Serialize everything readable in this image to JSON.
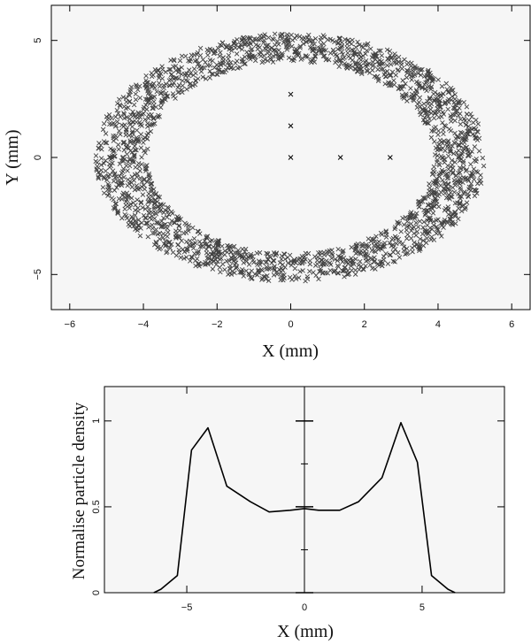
{
  "chart_data": [
    {
      "type": "scatter",
      "title": "",
      "xlabel": "X (mm)",
      "ylabel": "Y (mm)",
      "xlim": [
        -6.5,
        6.5
      ],
      "ylim": [
        -6.5,
        6.5
      ],
      "xticks": [
        -6,
        -4,
        -2,
        0,
        2,
        4,
        6
      ],
      "yticks": [
        -5,
        0,
        5
      ],
      "grid": false,
      "background": "#f6f6f6",
      "marker": "x",
      "distribution": {
        "shape": "elliptical annulus of particles",
        "inner_semi_axis_x": 3.9,
        "inner_semi_axis_y": 4.1,
        "outer_semi_axis_x": 5.3,
        "outer_semi_axis_y": 5.3
      },
      "isolated_points": [
        {
          "x": 0,
          "y": 0
        },
        {
          "x": 0,
          "y": 1.35
        },
        {
          "x": 0,
          "y": 2.7
        },
        {
          "x": 1.35,
          "y": 0
        },
        {
          "x": 2.7,
          "y": 0
        }
      ]
    },
    {
      "type": "line",
      "title": "",
      "xlabel": "X (mm)",
      "ylabel": "Normalise particle density",
      "xlim": [
        -8.5,
        8.5
      ],
      "ylim": [
        0,
        1.2
      ],
      "xticks": [
        -5,
        0,
        5
      ],
      "yticks": [
        0,
        0.5,
        1
      ],
      "grid": false,
      "background": "#f6f6f6",
      "series": [
        {
          "x": [
            -6.4,
            -6.1,
            -5.4,
            -4.8,
            -4.1,
            -3.3,
            -2.3,
            -1.5,
            -0.6,
            0,
            0.6,
            1.5,
            2.3,
            3.3,
            4.1,
            4.8,
            5.4,
            6.1,
            6.4
          ],
          "y": [
            0,
            0.02,
            0.1,
            0.83,
            0.96,
            0.62,
            0.53,
            0.47,
            0.48,
            0.49,
            0.48,
            0.48,
            0.53,
            0.67,
            0.99,
            0.76,
            0.1,
            0.02,
            0
          ]
        }
      ]
    }
  ]
}
